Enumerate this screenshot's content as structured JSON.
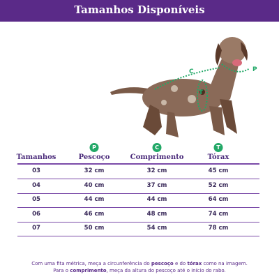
{
  "header": {
    "title": "Tamanhos Disponíveis"
  },
  "image": {
    "labels": [
      "C",
      "P",
      "T"
    ]
  },
  "table": {
    "columns": [
      {
        "label": "Tamanhos"
      },
      {
        "badge": "P",
        "label": "Pescoço"
      },
      {
        "badge": "C",
        "label": "Comprimento"
      },
      {
        "badge": "T",
        "label": "Tórax"
      }
    ],
    "rows": [
      [
        "03",
        "32 cm",
        "32 cm",
        "45 cm"
      ],
      [
        "04",
        "40 cm",
        "37 cm",
        "52 cm"
      ],
      [
        "05",
        "44 cm",
        "44 cm",
        "64 cm"
      ],
      [
        "06",
        "46 cm",
        "48 cm",
        "74 cm"
      ],
      [
        "07",
        "50 cm",
        "54 cm",
        "78 cm"
      ]
    ]
  },
  "footer": {
    "lines": [
      [
        {
          "text": "Com uma fita métrica, meça a circunferência do "
        },
        {
          "text": "pescoço",
          "bold": true
        },
        {
          "text": " e do "
        },
        {
          "text": "tórax",
          "bold": true
        },
        {
          "text": " como na imagem."
        }
      ],
      [
        {
          "text": "Para o "
        },
        {
          "text": "comprimento",
          "bold": true
        },
        {
          "text": ", meça da altura do pescoço até o início do rabo."
        }
      ]
    ]
  }
}
